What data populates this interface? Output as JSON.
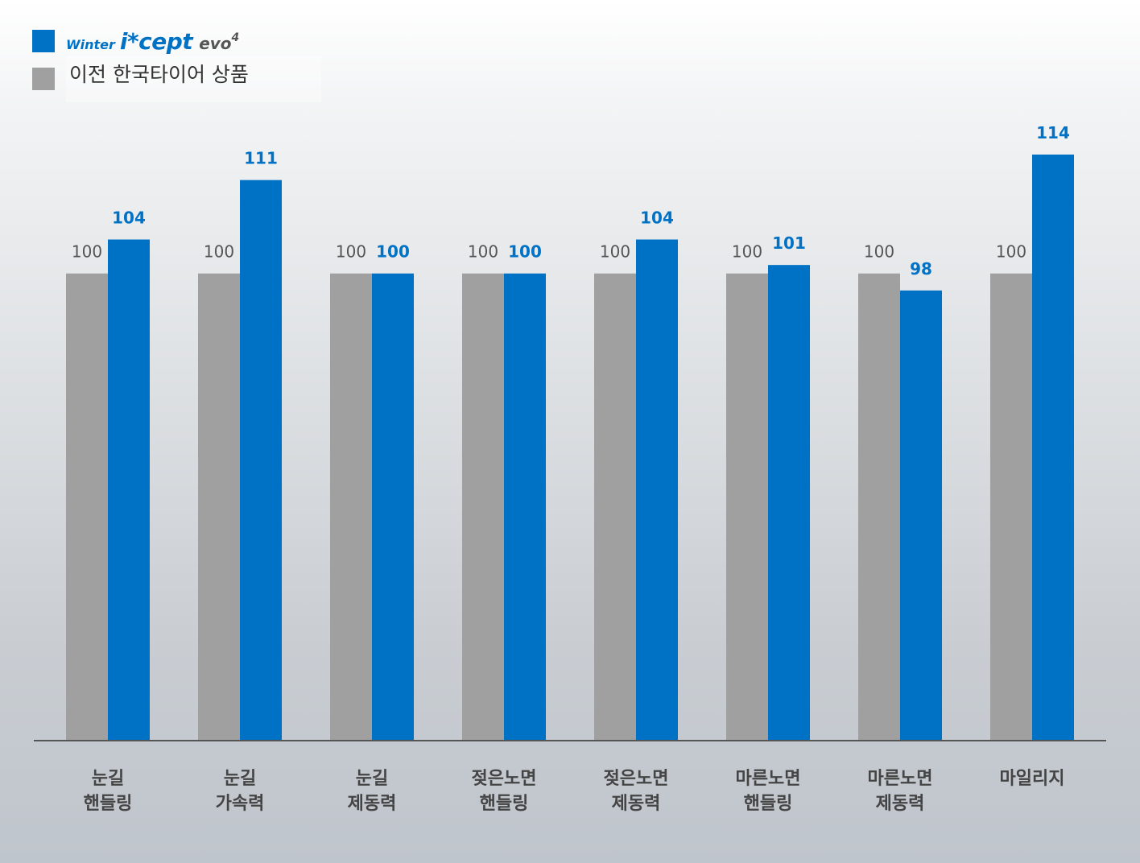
{
  "legend": {
    "logo_winter": "Winter",
    "logo_icept": "i*cept",
    "logo_evo": "evo",
    "logo_sup": "4",
    "previous_label": "이전 한국타이어 상품"
  },
  "colors": {
    "new": "#0072c6",
    "previous": "#a0a0a0",
    "axis": "#555555"
  },
  "chart_data": {
    "type": "bar",
    "categories": [
      [
        "눈길",
        "핸들링"
      ],
      [
        "눈길",
        "가속력"
      ],
      [
        "눈길",
        "제동력"
      ],
      [
        "젖은노면",
        "핸들링"
      ],
      [
        "젖은노면",
        "제동력"
      ],
      [
        "마른노면",
        "핸들링"
      ],
      [
        "마른노면",
        "제동력"
      ],
      [
        "마일리지"
      ]
    ],
    "series": [
      {
        "name": "이전 한국타이어 상품",
        "values": [
          100,
          100,
          100,
          100,
          100,
          100,
          100,
          100
        ]
      },
      {
        "name": "Winter i*cept evo4",
        "values": [
          104,
          111,
          100,
          100,
          104,
          101,
          98,
          114
        ]
      }
    ],
    "ylim": [
      45,
      114
    ],
    "grid": false,
    "legend_position": "top-left"
  }
}
